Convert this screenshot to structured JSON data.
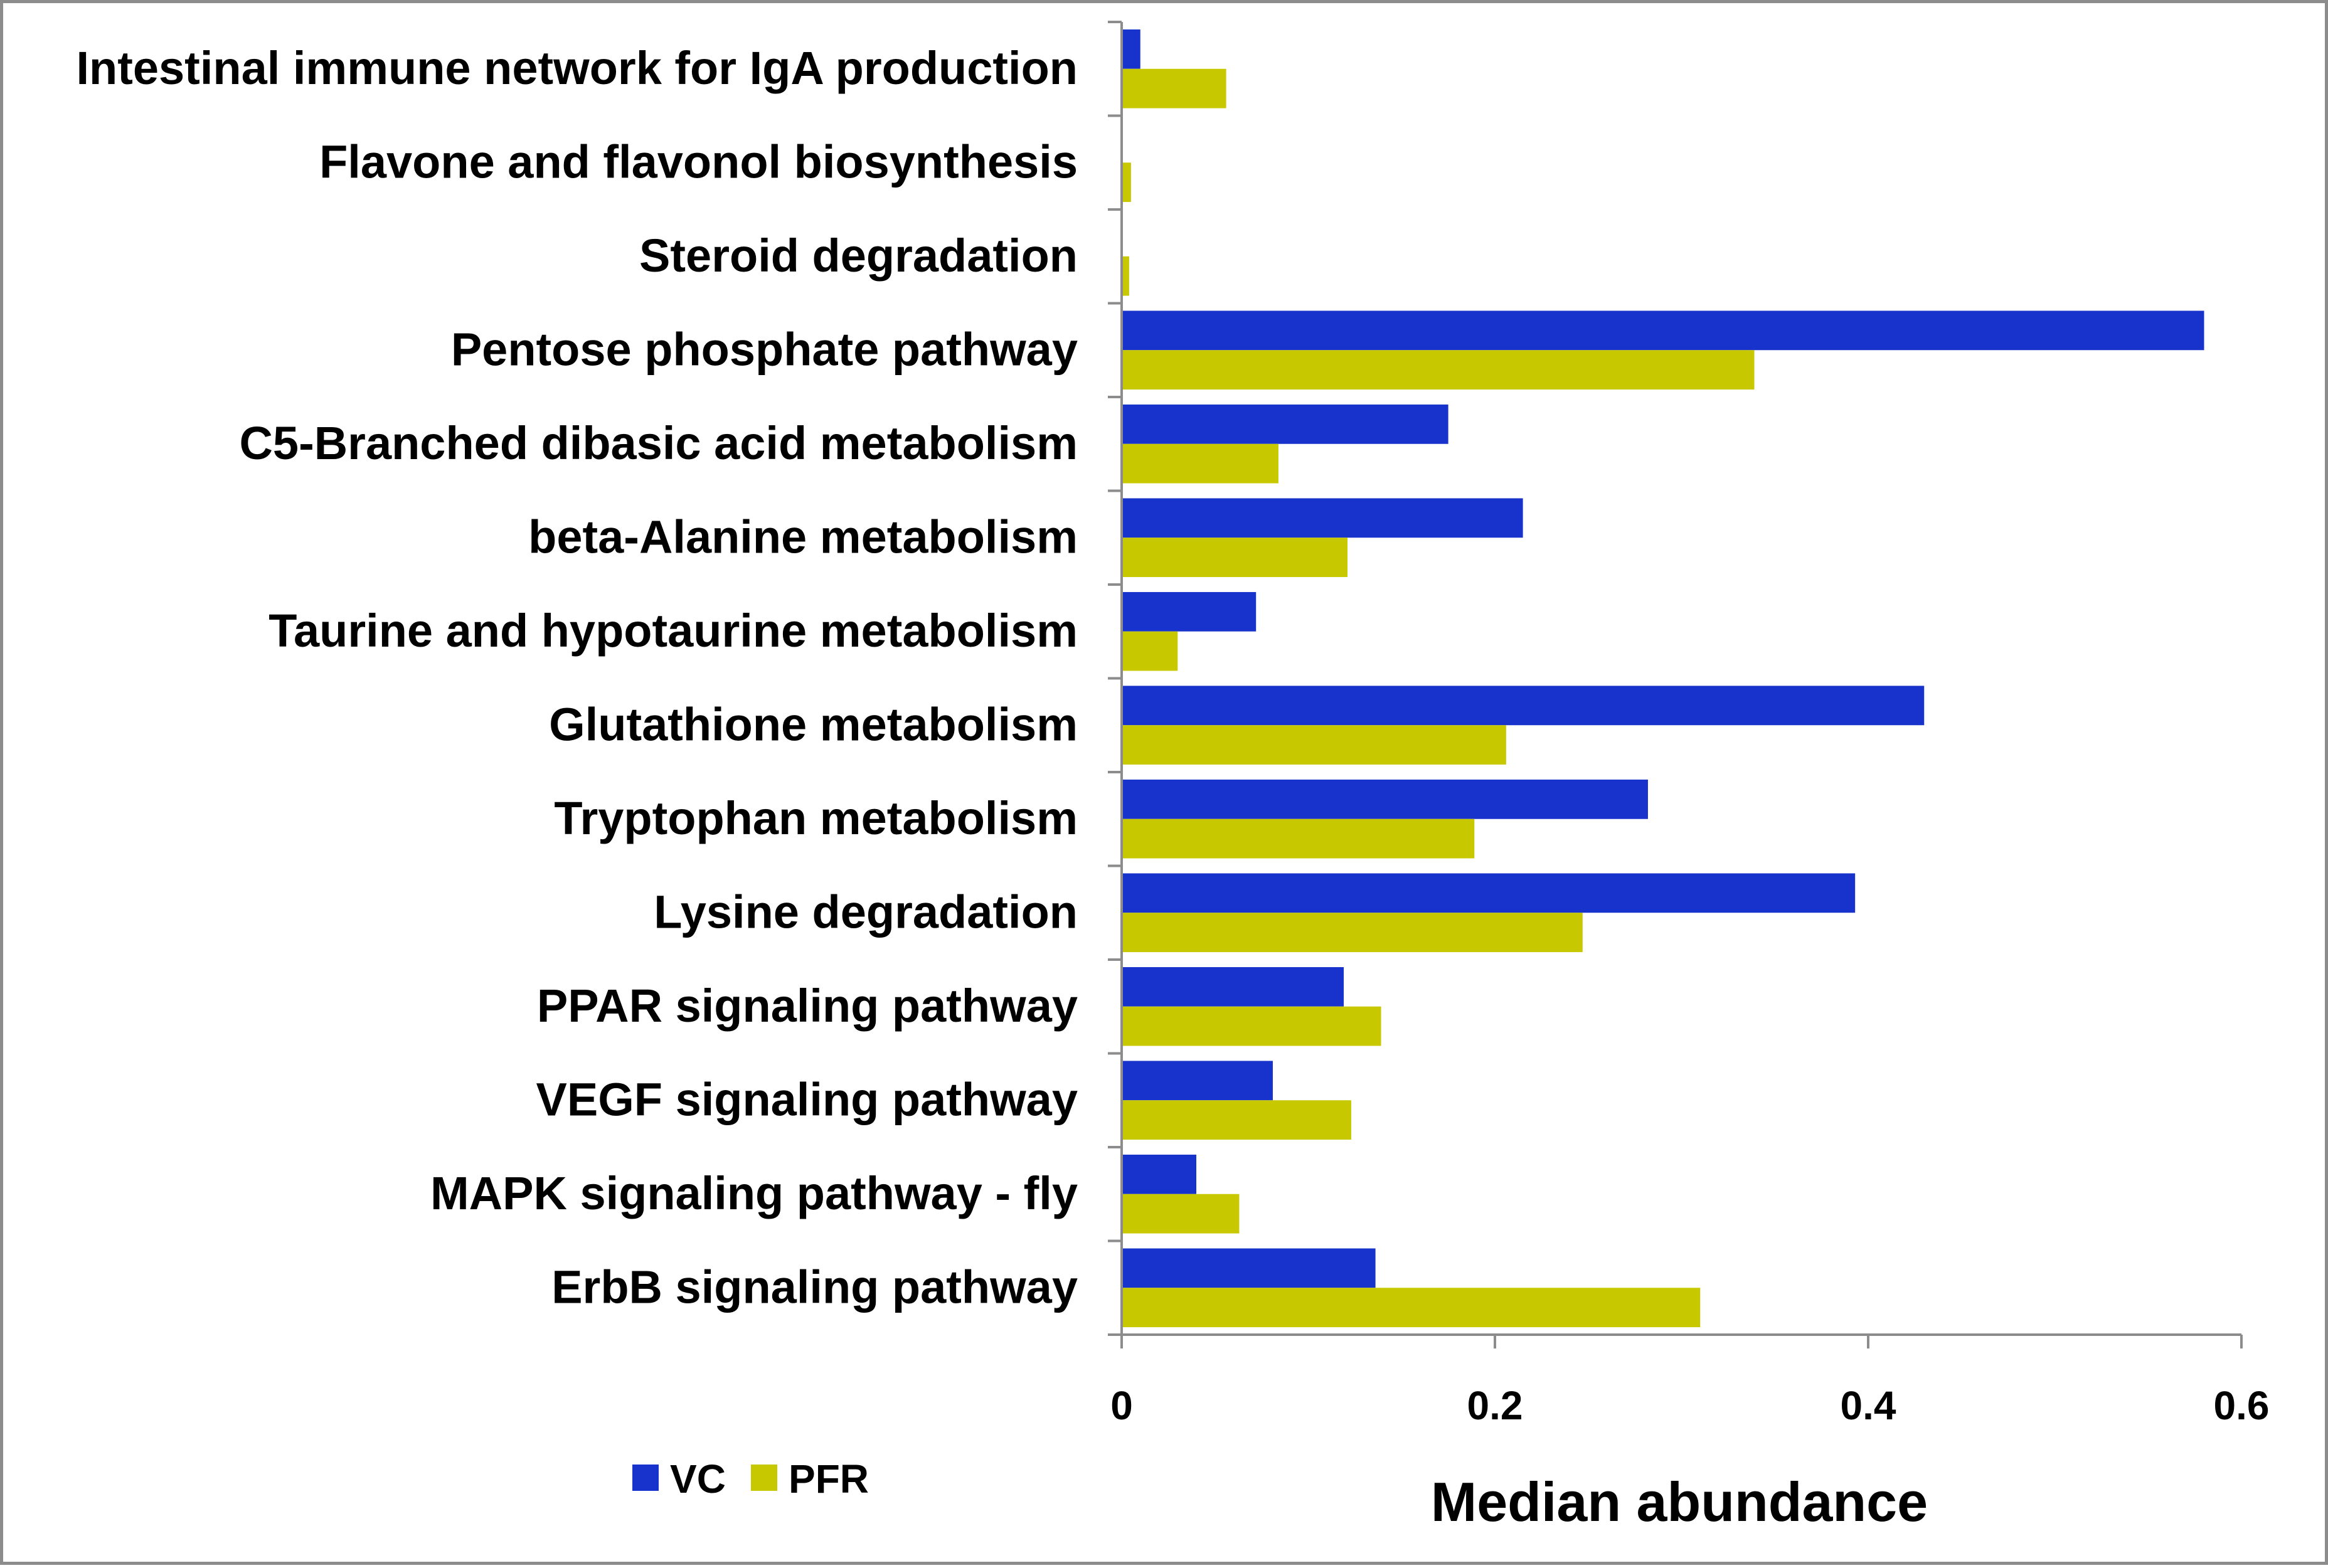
{
  "chart_data": {
    "type": "bar",
    "orientation": "horizontal",
    "categories": [
      "Intestinal immune network for IgA production",
      "Flavone and flavonol biosynthesis",
      "Steroid degradation",
      "Pentose phosphate pathway",
      "C5-Branched dibasic acid metabolism",
      "beta-Alanine metabolism",
      "Taurine and hypotaurine metabolism",
      "Glutathione metabolism",
      "Tryptophan metabolism",
      "Lysine degradation",
      "PPAR signaling pathway",
      "VEGF signaling pathway",
      "MAPK signaling pathway - fly",
      "ErbB signaling pathway"
    ],
    "series": [
      {
        "name": "VC",
        "color": "#1733cc",
        "values": [
          0.01,
          0.0,
          0.0,
          0.58,
          0.175,
          0.215,
          0.072,
          0.43,
          0.282,
          0.393,
          0.119,
          0.081,
          0.04,
          0.136
        ]
      },
      {
        "name": "PFR",
        "color": "#c8c800",
        "values": [
          0.056,
          0.005,
          0.004,
          0.339,
          0.084,
          0.121,
          0.03,
          0.206,
          0.189,
          0.247,
          0.139,
          0.123,
          0.063,
          0.31
        ]
      }
    ],
    "xlabel": "Median abundance",
    "xlim": [
      0,
      0.6
    ],
    "ticks": [
      "0",
      "0.2",
      "0.4",
      "0.6"
    ],
    "grid": false,
    "legend_position": "bottom-left"
  }
}
